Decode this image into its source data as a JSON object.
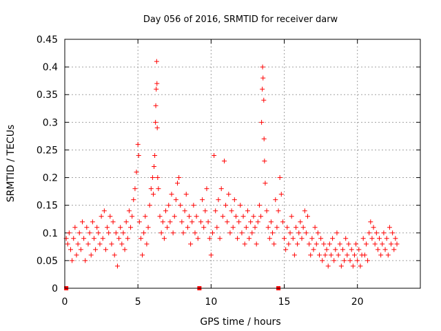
{
  "chart_data": {
    "type": "scatter",
    "title": "Day 056 of 2016, SRMTID for receiver darw",
    "xlabel": "GPS time / hours",
    "ylabel": "SRMTID / TECUs",
    "xlim": [
      0,
      24.3
    ],
    "ylim": [
      0,
      0.45
    ],
    "xticks": [
      0,
      5,
      10,
      15,
      20
    ],
    "xtick_labels": [
      "0",
      "5",
      "10",
      "15",
      "20"
    ],
    "yticks": [
      0,
      0.05,
      0.1,
      0.15,
      0.2,
      0.25,
      0.3,
      0.35,
      0.4,
      0.45
    ],
    "ytick_labels": [
      "0",
      "0.05",
      "0.1",
      "0.15",
      "0.2",
      "0.25",
      "0.3",
      "0.35",
      "0.4",
      "0.45"
    ],
    "grid": true,
    "marker": "+",
    "color": "#ff0000",
    "zero_markers_x": [
      0.1,
      9.2,
      14.6
    ],
    "series": [
      {
        "name": "SRMTID",
        "points": [
          [
            0.1,
            0.09
          ],
          [
            0.2,
            0.08
          ],
          [
            0.3,
            0.1
          ],
          [
            0.4,
            0.07
          ],
          [
            0.5,
            0.05
          ],
          [
            0.6,
            0.09
          ],
          [
            0.7,
            0.11
          ],
          [
            0.8,
            0.06
          ],
          [
            0.9,
            0.08
          ],
          [
            1.0,
            0.1
          ],
          [
            1.1,
            0.07
          ],
          [
            1.2,
            0.12
          ],
          [
            1.3,
            0.09
          ],
          [
            1.4,
            0.05
          ],
          [
            1.5,
            0.11
          ],
          [
            1.6,
            0.08
          ],
          [
            1.7,
            0.1
          ],
          [
            1.8,
            0.06
          ],
          [
            1.9,
            0.12
          ],
          [
            2.0,
            0.09
          ],
          [
            2.1,
            0.07
          ],
          [
            2.2,
            0.11
          ],
          [
            2.3,
            0.1
          ],
          [
            2.4,
            0.08
          ],
          [
            2.5,
            0.13
          ],
          [
            2.6,
            0.09
          ],
          [
            2.7,
            0.14
          ],
          [
            2.8,
            0.07
          ],
          [
            2.9,
            0.11
          ],
          [
            3.0,
            0.1
          ],
          [
            3.1,
            0.13
          ],
          [
            3.2,
            0.08
          ],
          [
            3.3,
            0.12
          ],
          [
            3.4,
            0.06
          ],
          [
            3.5,
            0.1
          ],
          [
            3.6,
            0.04
          ],
          [
            3.7,
            0.09
          ],
          [
            3.8,
            0.11
          ],
          [
            3.9,
            0.08
          ],
          [
            4.0,
            0.1
          ],
          [
            4.1,
            0.07
          ],
          [
            4.2,
            0.12
          ],
          [
            4.3,
            0.09
          ],
          [
            4.4,
            0.14
          ],
          [
            4.5,
            0.11
          ],
          [
            4.6,
            0.13
          ],
          [
            4.7,
            0.16
          ],
          [
            4.8,
            0.18
          ],
          [
            4.9,
            0.21
          ],
          [
            5.0,
            0.26
          ],
          [
            5.05,
            0.24
          ],
          [
            5.1,
            0.12
          ],
          [
            5.2,
            0.09
          ],
          [
            5.3,
            0.06
          ],
          [
            5.4,
            0.1
          ],
          [
            5.5,
            0.13
          ],
          [
            5.6,
            0.08
          ],
          [
            5.7,
            0.11
          ],
          [
            5.8,
            0.15
          ],
          [
            5.9,
            0.18
          ],
          [
            6.0,
            0.2
          ],
          [
            6.05,
            0.17
          ],
          [
            6.1,
            0.22
          ],
          [
            6.15,
            0.24
          ],
          [
            6.2,
            0.3
          ],
          [
            6.22,
            0.33
          ],
          [
            6.25,
            0.36
          ],
          [
            6.28,
            0.41
          ],
          [
            6.3,
            0.37
          ],
          [
            6.32,
            0.29
          ],
          [
            6.35,
            0.2
          ],
          [
            6.4,
            0.18
          ],
          [
            6.5,
            0.13
          ],
          [
            6.6,
            0.1
          ],
          [
            6.7,
            0.12
          ],
          [
            6.8,
            0.09
          ],
          [
            6.9,
            0.14
          ],
          [
            7.0,
            0.11
          ],
          [
            7.1,
            0.15
          ],
          [
            7.2,
            0.12
          ],
          [
            7.3,
            0.17
          ],
          [
            7.4,
            0.1
          ],
          [
            7.5,
            0.13
          ],
          [
            7.6,
            0.16
          ],
          [
            7.7,
            0.19
          ],
          [
            7.8,
            0.2
          ],
          [
            7.9,
            0.15
          ],
          [
            8.0,
            0.12
          ],
          [
            8.1,
            0.1
          ],
          [
            8.2,
            0.14
          ],
          [
            8.3,
            0.17
          ],
          [
            8.4,
            0.11
          ],
          [
            8.5,
            0.13
          ],
          [
            8.6,
            0.08
          ],
          [
            8.7,
            0.12
          ],
          [
            8.8,
            0.15
          ],
          [
            8.9,
            0.1
          ],
          [
            9.0,
            0.13
          ],
          [
            9.1,
            0.09
          ],
          [
            9.3,
            0.12
          ],
          [
            9.4,
            0.16
          ],
          [
            9.5,
            0.11
          ],
          [
            9.6,
            0.14
          ],
          [
            9.7,
            0.18
          ],
          [
            9.8,
            0.12
          ],
          [
            9.9,
            0.09
          ],
          [
            10.0,
            0.06
          ],
          [
            10.1,
            0.1
          ],
          [
            10.2,
            0.24
          ],
          [
            10.3,
            0.14
          ],
          [
            10.4,
            0.11
          ],
          [
            10.5,
            0.16
          ],
          [
            10.6,
            0.09
          ],
          [
            10.7,
            0.18
          ],
          [
            10.8,
            0.13
          ],
          [
            10.9,
            0.23
          ],
          [
            11.0,
            0.15
          ],
          [
            11.1,
            0.12
          ],
          [
            11.2,
            0.17
          ],
          [
            11.3,
            0.1
          ],
          [
            11.4,
            0.14
          ],
          [
            11.5,
            0.11
          ],
          [
            11.6,
            0.16
          ],
          [
            11.7,
            0.13
          ],
          [
            11.8,
            0.09
          ],
          [
            11.9,
            0.12
          ],
          [
            12.0,
            0.15
          ],
          [
            12.1,
            0.1
          ],
          [
            12.2,
            0.13
          ],
          [
            12.3,
            0.08
          ],
          [
            12.4,
            0.11
          ],
          [
            12.5,
            0.14
          ],
          [
            12.6,
            0.09
          ],
          [
            12.7,
            0.12
          ],
          [
            12.8,
            0.1
          ],
          [
            12.9,
            0.13
          ],
          [
            13.0,
            0.11
          ],
          [
            13.1,
            0.08
          ],
          [
            13.2,
            0.12
          ],
          [
            13.3,
            0.15
          ],
          [
            13.4,
            0.13
          ],
          [
            13.45,
            0.3
          ],
          [
            13.5,
            0.36
          ],
          [
            13.52,
            0.4
          ],
          [
            13.55,
            0.38
          ],
          [
            13.6,
            0.34
          ],
          [
            13.62,
            0.27
          ],
          [
            13.65,
            0.23
          ],
          [
            13.7,
            0.19
          ],
          [
            13.8,
            0.14
          ],
          [
            13.9,
            0.11
          ],
          [
            14.0,
            0.09
          ],
          [
            14.1,
            0.12
          ],
          [
            14.2,
            0.1
          ],
          [
            14.3,
            0.08
          ],
          [
            14.4,
            0.16
          ],
          [
            14.5,
            0.11
          ],
          [
            14.6,
            0.14
          ],
          [
            14.7,
            0.2
          ],
          [
            14.8,
            0.17
          ],
          [
            14.9,
            0.12
          ],
          [
            15.0,
            0.09
          ],
          [
            15.1,
            0.07
          ],
          [
            15.2,
            0.11
          ],
          [
            15.3,
            0.08
          ],
          [
            15.4,
            0.1
          ],
          [
            15.5,
            0.13
          ],
          [
            15.6,
            0.09
          ],
          [
            15.7,
            0.06
          ],
          [
            15.8,
            0.11
          ],
          [
            15.9,
            0.08
          ],
          [
            16.0,
            0.1
          ],
          [
            16.1,
            0.12
          ],
          [
            16.2,
            0.09
          ],
          [
            16.3,
            0.11
          ],
          [
            16.4,
            0.14
          ],
          [
            16.5,
            0.1
          ],
          [
            16.6,
            0.13
          ],
          [
            16.7,
            0.08
          ],
          [
            16.8,
            0.06
          ],
          [
            16.9,
            0.09
          ],
          [
            17.0,
            0.07
          ],
          [
            17.1,
            0.11
          ],
          [
            17.2,
            0.08
          ],
          [
            17.3,
            0.1
          ],
          [
            17.4,
            0.06
          ],
          [
            17.5,
            0.09
          ],
          [
            17.6,
            0.05
          ],
          [
            17.7,
            0.08
          ],
          [
            17.8,
            0.06
          ],
          [
            17.9,
            0.07
          ],
          [
            18.0,
            0.04
          ],
          [
            18.1,
            0.08
          ],
          [
            18.2,
            0.06
          ],
          [
            18.3,
            0.09
          ],
          [
            18.4,
            0.05
          ],
          [
            18.5,
            0.07
          ],
          [
            18.6,
            0.1
          ],
          [
            18.7,
            0.06
          ],
          [
            18.8,
            0.08
          ],
          [
            18.9,
            0.04
          ],
          [
            19.0,
            0.07
          ],
          [
            19.1,
            0.05
          ],
          [
            19.2,
            0.09
          ],
          [
            19.3,
            0.06
          ],
          [
            19.4,
            0.08
          ],
          [
            19.5,
            0.05
          ],
          [
            19.6,
            0.07
          ],
          [
            19.7,
            0.04
          ],
          [
            19.8,
            0.06
          ],
          [
            19.9,
            0.08
          ],
          [
            20.0,
            0.05
          ],
          [
            20.1,
            0.07
          ],
          [
            20.2,
            0.04
          ],
          [
            20.3,
            0.06
          ],
          [
            20.4,
            0.09
          ],
          [
            20.5,
            0.06
          ],
          [
            20.6,
            0.08
          ],
          [
            20.7,
            0.05
          ],
          [
            20.8,
            0.1
          ],
          [
            20.9,
            0.12
          ],
          [
            21.0,
            0.09
          ],
          [
            21.1,
            0.11
          ],
          [
            21.2,
            0.08
          ],
          [
            21.3,
            0.1
          ],
          [
            21.4,
            0.07
          ],
          [
            21.5,
            0.09
          ],
          [
            21.6,
            0.06
          ],
          [
            21.7,
            0.08
          ],
          [
            21.8,
            0.1
          ],
          [
            21.9,
            0.07
          ],
          [
            22.0,
            0.09
          ],
          [
            22.1,
            0.06
          ],
          [
            22.2,
            0.11
          ],
          [
            22.3,
            0.08
          ],
          [
            22.4,
            0.1
          ],
          [
            22.5,
            0.07
          ],
          [
            22.6,
            0.09
          ],
          [
            22.7,
            0.08
          ]
        ]
      }
    ]
  }
}
